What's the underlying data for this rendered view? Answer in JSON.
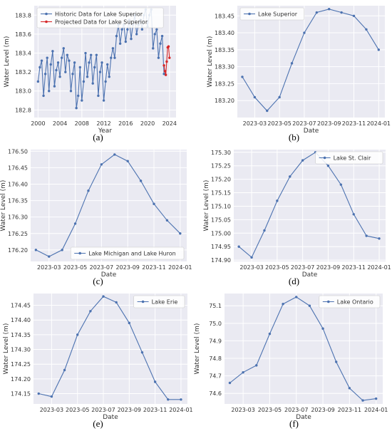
{
  "charts": [
    {
      "id": "a",
      "caption": "(a)",
      "type": "line",
      "xlabel": "Year",
      "ylabel": "Water Level (m)",
      "x_axis": "year",
      "xlim": [
        1999.3,
        2025.2
      ],
      "ylim": [
        182.72,
        183.9
      ],
      "xticks": [
        2000,
        2004,
        2008,
        2012,
        2016,
        2020,
        2024
      ],
      "xtick_labels": [
        "2000",
        "2004",
        "2008",
        "2012",
        "2016",
        "2020",
        "2024"
      ],
      "yticks": [
        182.8,
        183.0,
        183.2,
        183.4,
        183.6,
        183.8
      ],
      "ytick_labels": [
        "182.8",
        "183.0",
        "183.2",
        "183.4",
        "183.6",
        "183.8"
      ],
      "grid": true,
      "legend_position": "top-left",
      "series": [
        {
          "name": "Historic Data for Lake Superior",
          "color": "#4c72b0",
          "x": [
            2000.0,
            2000.33,
            2000.67,
            2001.0,
            2001.33,
            2001.67,
            2002.0,
            2002.33,
            2002.67,
            2003.0,
            2003.33,
            2003.67,
            2004.0,
            2004.33,
            2004.67,
            2005.0,
            2005.33,
            2005.67,
            2006.0,
            2006.33,
            2006.67,
            2007.0,
            2007.33,
            2007.67,
            2008.0,
            2008.33,
            2008.67,
            2009.0,
            2009.33,
            2009.67,
            2010.0,
            2010.33,
            2010.67,
            2011.0,
            2011.33,
            2011.67,
            2012.0,
            2012.33,
            2012.67,
            2013.0,
            2013.33,
            2013.67,
            2014.0,
            2014.33,
            2014.67,
            2015.0,
            2015.33,
            2015.67,
            2016.0,
            2016.33,
            2016.67,
            2017.0,
            2017.33,
            2017.67,
            2018.0,
            2018.33,
            2018.67,
            2019.0,
            2019.33,
            2019.67,
            2020.0,
            2020.33,
            2020.67,
            2021.0,
            2021.33,
            2021.67,
            2022.0,
            2022.33,
            2022.67,
            2023.0
          ],
          "y": [
            183.1,
            183.25,
            183.32,
            182.95,
            183.18,
            183.35,
            183.0,
            183.28,
            183.42,
            183.05,
            183.22,
            183.3,
            183.15,
            183.35,
            183.45,
            183.2,
            183.38,
            183.32,
            183.0,
            183.18,
            183.3,
            182.82,
            182.95,
            183.25,
            182.9,
            183.1,
            183.4,
            183.15,
            183.3,
            183.38,
            183.08,
            183.25,
            183.38,
            182.95,
            183.2,
            183.3,
            182.9,
            183.1,
            183.28,
            183.15,
            183.35,
            183.45,
            183.35,
            183.58,
            183.7,
            183.5,
            183.65,
            183.7,
            183.52,
            183.65,
            183.75,
            183.55,
            183.7,
            183.8,
            183.6,
            183.7,
            183.75,
            183.65,
            183.8,
            183.86,
            183.68,
            183.8,
            183.86,
            183.45,
            183.6,
            183.65,
            183.35,
            183.5,
            183.58,
            183.18
          ]
        },
        {
          "name": "Projected Data for Lake Superior",
          "color": "#d62728",
          "x": [
            2023.0,
            2023.17,
            2023.33,
            2023.5,
            2023.67,
            2023.83,
            2024.0
          ],
          "y": [
            183.27,
            183.21,
            183.17,
            183.31,
            183.46,
            183.47,
            183.35
          ]
        }
      ]
    },
    {
      "id": "b",
      "caption": "(b)",
      "type": "line",
      "xlabel": "Date",
      "ylabel": "Water Level (m)",
      "x_axis": "month",
      "xlim": [
        0.6,
        12.5
      ],
      "ylim": [
        183.15,
        183.48
      ],
      "xticks": [
        2,
        4,
        6,
        8,
        10,
        12
      ],
      "xtick_labels": [
        "2023-03",
        "2023-05",
        "2023-07",
        "2023-09",
        "2023-11",
        "2024-01"
      ],
      "yticks": [
        183.2,
        183.25,
        183.3,
        183.35,
        183.4,
        183.45
      ],
      "ytick_labels": [
        "183.20",
        "183.25",
        "183.30",
        "183.35",
        "183.40",
        "183.45"
      ],
      "grid": true,
      "legend_position": "top-left",
      "series": [
        {
          "name": "Lake Superior",
          "color": "#4c72b0",
          "x": [
            1,
            2,
            3,
            4,
            5,
            6,
            7,
            8,
            9,
            10,
            11,
            12
          ],
          "y": [
            183.27,
            183.21,
            183.17,
            183.21,
            183.31,
            183.4,
            183.46,
            183.47,
            183.46,
            183.45,
            183.41,
            183.35
          ]
        }
      ]
    },
    {
      "id": "c",
      "caption": "(c)",
      "type": "line",
      "xlabel": "Date",
      "ylabel": "Water Level (m)",
      "x_axis": "month",
      "xlim": [
        0.6,
        12.5
      ],
      "ylim": [
        176.165,
        176.505
      ],
      "xticks": [
        2,
        4,
        6,
        8,
        10,
        12
      ],
      "xtick_labels": [
        "2023-03",
        "2023-05",
        "2023-07",
        "2023-09",
        "2023-11",
        "2024-01"
      ],
      "yticks": [
        176.2,
        176.25,
        176.3,
        176.35,
        176.4,
        176.45,
        176.5
      ],
      "ytick_labels": [
        "176.20",
        "176.25",
        "176.30",
        "176.35",
        "176.40",
        "176.45",
        "176.50"
      ],
      "grid": true,
      "legend_position": "bottom-right",
      "series": [
        {
          "name": "Lake Michigan and Lake Huron",
          "color": "#4c72b0",
          "x": [
            1,
            2,
            3,
            4,
            5,
            6,
            7,
            8,
            9,
            10,
            11,
            12
          ],
          "y": [
            176.2,
            176.18,
            176.2,
            176.28,
            176.38,
            176.46,
            176.49,
            176.47,
            176.41,
            176.34,
            176.29,
            176.25
          ]
        }
      ]
    },
    {
      "id": "d",
      "caption": "(d)",
      "type": "line",
      "xlabel": "Date",
      "ylabel": "Water Level (m)",
      "x_axis": "month",
      "xlim": [
        0.6,
        12.5
      ],
      "ylim": [
        174.895,
        175.31
      ],
      "xticks": [
        2,
        4,
        6,
        8,
        10,
        12
      ],
      "xtick_labels": [
        "2023-03",
        "2023-05",
        "2023-07",
        "2023-09",
        "2023-11",
        "2024-01"
      ],
      "yticks": [
        174.9,
        174.95,
        175.0,
        175.05,
        175.1,
        175.15,
        175.2,
        175.25,
        175.3
      ],
      "ytick_labels": [
        "174.90",
        "174.95",
        "175.00",
        "175.05",
        "175.10",
        "175.15",
        "175.20",
        "175.25",
        "175.30"
      ],
      "grid": true,
      "legend_position": "top-right",
      "series": [
        {
          "name": "Lake St. Clair",
          "color": "#4c72b0",
          "x": [
            1,
            2,
            3,
            4,
            5,
            6,
            7,
            8,
            9,
            10,
            11,
            12
          ],
          "y": [
            174.95,
            174.91,
            175.01,
            175.12,
            175.21,
            175.27,
            175.3,
            175.25,
            175.18,
            175.07,
            174.99,
            174.98
          ]
        }
      ]
    },
    {
      "id": "e",
      "caption": "(e)",
      "type": "line",
      "xlabel": "Date",
      "ylabel": "Water Level (m)",
      "x_axis": "month",
      "xlim": [
        0.6,
        12.5
      ],
      "ylim": [
        174.115,
        174.49
      ],
      "xticks": [
        2,
        4,
        6,
        8,
        10,
        12
      ],
      "xtick_labels": [
        "2023-03",
        "2023-05",
        "2023-07",
        "2023-09",
        "2023-11",
        "2024-01"
      ],
      "yticks": [
        174.15,
        174.2,
        174.25,
        174.3,
        174.35,
        174.4,
        174.45
      ],
      "ytick_labels": [
        "174.15",
        "174.20",
        "174.25",
        "174.30",
        "174.35",
        "174.40",
        "174.45"
      ],
      "grid": true,
      "legend_position": "top-right",
      "series": [
        {
          "name": "Lake Erie",
          "color": "#4c72b0",
          "x": [
            1,
            2,
            3,
            4,
            5,
            6,
            7,
            8,
            9,
            10,
            11,
            12
          ],
          "y": [
            174.15,
            174.14,
            174.23,
            174.35,
            174.43,
            174.48,
            174.46,
            174.39,
            174.29,
            174.19,
            174.13,
            174.13
          ]
        }
      ]
    },
    {
      "id": "f",
      "caption": "(f)",
      "type": "line",
      "xlabel": "Date",
      "ylabel": "Water Level (m)",
      "x_axis": "month",
      "xlim": [
        0.6,
        12.5
      ],
      "ylim": [
        74.54,
        75.17
      ],
      "xticks": [
        2,
        4,
        6,
        8,
        10,
        12
      ],
      "xtick_labels": [
        "2023-03",
        "2023-05",
        "2023-07",
        "2023-09",
        "2023-11",
        "2024-01"
      ],
      "yticks": [
        74.6,
        74.7,
        74.8,
        74.9,
        75.0,
        75.1
      ],
      "ytick_labels": [
        "74.6",
        "74.7",
        "74.8",
        "74.9",
        "75.0",
        "75.1"
      ],
      "grid": true,
      "legend_position": "top-right",
      "series": [
        {
          "name": "Lake Ontario",
          "color": "#4c72b0",
          "x": [
            1,
            2,
            3,
            4,
            5,
            6,
            7,
            8,
            9,
            10,
            11,
            12
          ],
          "y": [
            74.66,
            74.72,
            74.76,
            74.94,
            75.11,
            75.15,
            75.1,
            74.97,
            74.78,
            74.63,
            74.56,
            74.57
          ]
        }
      ]
    }
  ]
}
